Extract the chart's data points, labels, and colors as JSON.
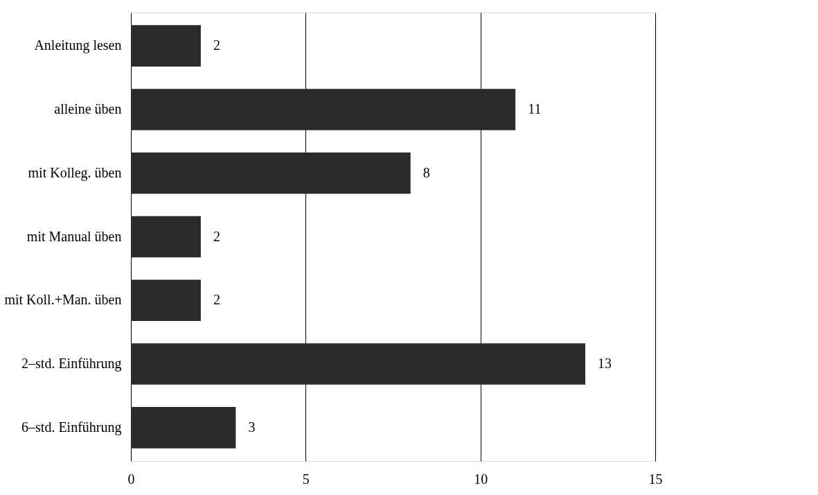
{
  "chart_data": {
    "type": "bar",
    "orientation": "horizontal",
    "categories": [
      "Anleitung lesen",
      "alleine üben",
      "mit Kolleg. üben",
      "mit Manual üben",
      "mit Koll.+Man. üben",
      "2–std. Einführung",
      "6–std. Einführung"
    ],
    "values": [
      2,
      11,
      8,
      2,
      2,
      13,
      3
    ],
    "color": "#2b2b2b",
    "xlim": [
      0,
      15
    ],
    "xticks": [
      0,
      5,
      10,
      15
    ],
    "grid": "x",
    "data_labels": true
  }
}
